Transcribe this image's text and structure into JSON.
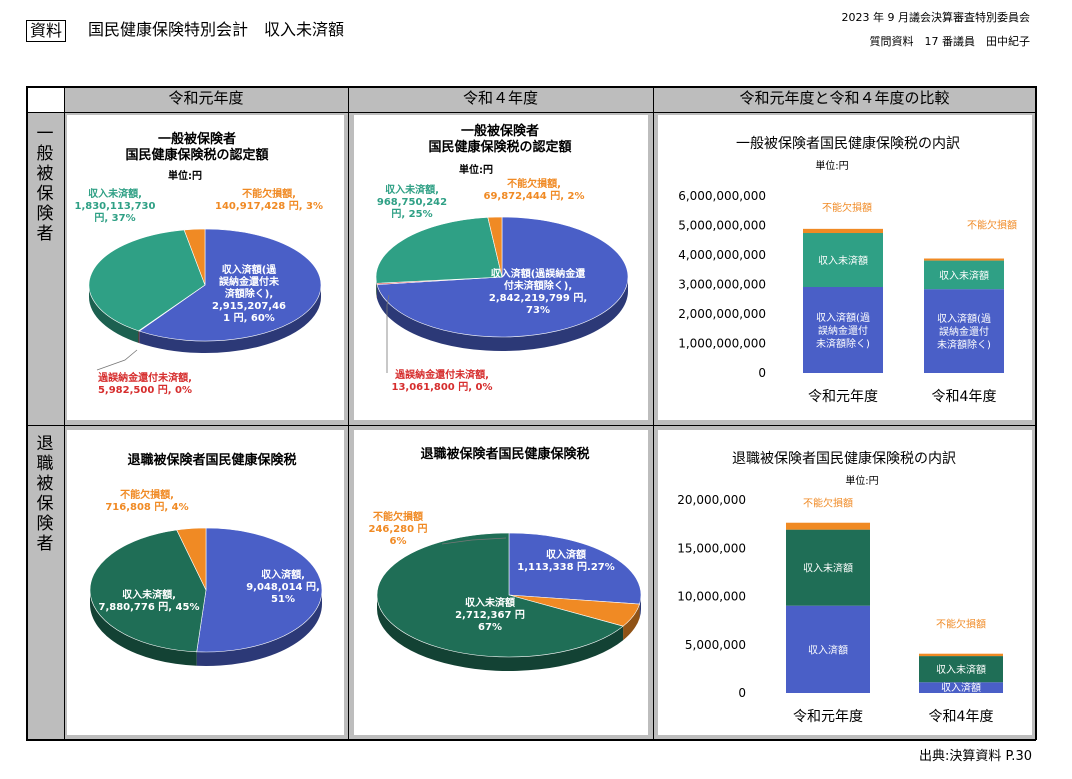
{
  "header": {
    "tag": "資料",
    "title": "国民健康保険特別会計　収入未済額",
    "right_line1": "2023 年 9 月議会決算審査特別委員会",
    "right_line2": "質問資料　17 番議員　田中紀子"
  },
  "footer": "出典:決算資料 P.30",
  "columns": [
    "令和元年度",
    "令和４年度",
    "令和元年度と令和４年度の比較"
  ],
  "rows": [
    "一般被保険者",
    "退職被保険者"
  ],
  "colors": {
    "received": "#4a5fc7",
    "unpaid_general": "#2fa085",
    "unpaid_retired": "#1f6e56",
    "loss": "#f08a24",
    "refund": "#d62d2d",
    "grid_bg": "#bdbdbd"
  },
  "chart_data": [
    {
      "type": "pie",
      "title": "一般被保険者\n国民健康保険税の認定額",
      "unit": "単位:円",
      "slices": [
        {
          "name": "収入済額(過誤納金還付未済額除く)",
          "value": 2915207461,
          "pct": "60%",
          "label_lines": [
            "収入済額(過",
            "誤納金還付未",
            "済額除く),",
            "2,915,207,46",
            "1 円, 60%"
          ]
        },
        {
          "name": "過誤納金還付未済額",
          "value": 5982500,
          "pct": "0%",
          "label_lines": [
            "過誤納金還付未済額,",
            "5,982,500 円, 0%"
          ]
        },
        {
          "name": "収入未済額",
          "value": 1830113730,
          "pct": "37%",
          "label_lines": [
            "収入未済額,",
            "1,830,113,730",
            "円, 37%"
          ]
        },
        {
          "name": "不能欠損額",
          "value": 140917428,
          "pct": "3%",
          "label_lines": [
            "不能欠損額,",
            "140,917,428 円, 3%"
          ]
        }
      ]
    },
    {
      "type": "pie",
      "title": "一般被保険者\n国民健康保険税の認定額",
      "unit": "単位:円",
      "slices": [
        {
          "name": "収入済額(過誤納金還付未済額除く)",
          "value": 2842219799,
          "pct": "73%",
          "label_lines": [
            "収入済額(過誤納金還",
            "付未済額除く),",
            "2,842,219,799 円,",
            "73%"
          ]
        },
        {
          "name": "過誤納金還付未済額",
          "value": 13061800,
          "pct": "0%",
          "label_lines": [
            "過誤納金還付未済額,",
            "13,061,800 円, 0%"
          ]
        },
        {
          "name": "収入未済額",
          "value": 968750242,
          "pct": "25%",
          "label_lines": [
            "収入未済額,",
            "968,750,242",
            "円, 25%"
          ]
        },
        {
          "name": "不能欠損額",
          "value": 69872444,
          "pct": "2%",
          "label_lines": [
            "不能欠損額,",
            "69,872,444 円, 2%"
          ]
        }
      ]
    },
    {
      "type": "bar",
      "stacked": true,
      "title": "一般被保険者国民健康保険税の内訳",
      "unit": "単位:円",
      "categories": [
        "令和元年度",
        "令和4年度"
      ],
      "series": [
        {
          "name": "収入済額(過誤納金還付未済額除く)",
          "values": [
            2915207461,
            2842219799
          ]
        },
        {
          "name": "収入未済額",
          "values": [
            1830113730,
            968750242
          ]
        },
        {
          "name": "不能欠損額",
          "values": [
            140917428,
            69872444
          ]
        }
      ],
      "ylim": [
        0,
        6000000000
      ],
      "yticks": [
        0,
        1000000000,
        2000000000,
        3000000000,
        4000000000,
        5000000000,
        6000000000
      ],
      "ytick_labels": [
        "0",
        "1,000,000,000",
        "2,000,000,000",
        "3,000,000,000",
        "4,000,000,000",
        "5,000,000,000",
        "6,000,000,000"
      ],
      "segment_labels": {
        "bottom": [
          "収入済額(過",
          "誤納金還付",
          "未済額除く)"
        ],
        "middle": "収入未済額",
        "top": "不能欠損額"
      }
    },
    {
      "type": "pie",
      "title": "退職被保険者国民健康保険税",
      "slices": [
        {
          "name": "収入済額",
          "value": 9048014,
          "pct": "51%",
          "label_lines": [
            "収入済額,",
            "9,048,014 円,",
            "51%"
          ]
        },
        {
          "name": "収入未済額",
          "value": 7880776,
          "pct": "45%",
          "label_lines": [
            "収入未済額,",
            "7,880,776 円, 45%"
          ]
        },
        {
          "name": "不能欠損額",
          "value": 716808,
          "pct": "4%",
          "label_lines": [
            "不能欠損額,",
            "716,808 円, 4%"
          ]
        }
      ]
    },
    {
      "type": "pie",
      "title": "退職被保険者国民健康保険税",
      "slices": [
        {
          "name": "収入済額",
          "value": 1113338,
          "pct": "27%",
          "label_lines": [
            "収入済額",
            "1,113,338 円.27%"
          ]
        },
        {
          "name": "収入未済額",
          "value": 2712367,
          "pct": "67%",
          "label_lines": [
            "収入未済額",
            "2,712,367 円",
            "67%"
          ]
        },
        {
          "name": "不能欠損額",
          "value": 246280,
          "pct": "6%",
          "label_lines": [
            "不能欠損額",
            "246,280 円",
            "6%"
          ]
        }
      ]
    },
    {
      "type": "bar",
      "stacked": true,
      "title": "退職被保険者国民健康保険税の内訳",
      "unit": "単位:円",
      "categories": [
        "令和元年度",
        "令和4年度"
      ],
      "series": [
        {
          "name": "収入済額",
          "values": [
            9048014,
            1113338
          ]
        },
        {
          "name": "収入未済額",
          "values": [
            7880776,
            2712367
          ]
        },
        {
          "name": "不能欠損額",
          "values": [
            716808,
            246280
          ]
        }
      ],
      "ylim": [
        0,
        20000000
      ],
      "yticks": [
        0,
        5000000,
        10000000,
        15000000,
        20000000
      ],
      "ytick_labels": [
        "0",
        "5,000,000",
        "10,000,000",
        "15,000,000",
        "20,000,000"
      ],
      "segment_labels": {
        "bottom": [
          "収入済額"
        ],
        "middle": "収入未済額",
        "top": "不能欠損額"
      }
    }
  ]
}
